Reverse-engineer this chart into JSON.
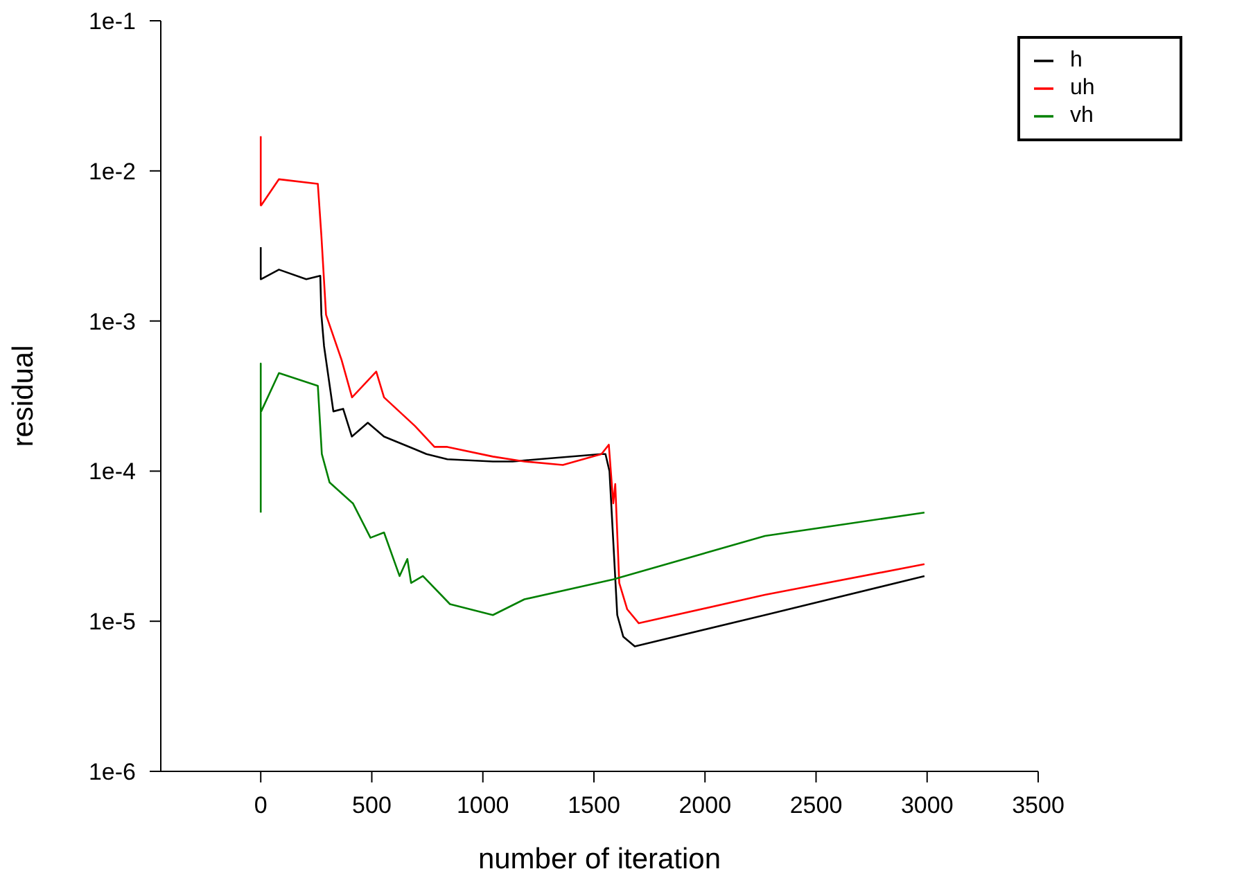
{
  "chart_data": {
    "type": "line",
    "xlabel": "number of iteration",
    "ylabel": "residual",
    "log": "y",
    "xlim": [
      -450,
      3500
    ],
    "xticks": [
      0,
      500,
      1000,
      1500,
      2000,
      2500,
      3000,
      3500
    ],
    "ylim": [
      1e-06,
      0.1
    ],
    "yticks": [
      {
        "value": 1e-06,
        "label": "1e-6"
      },
      {
        "value": 1e-05,
        "label": "1e-5"
      },
      {
        "value": 0.0001,
        "label": "1e-4"
      },
      {
        "value": 0.001,
        "label": "1e-3"
      },
      {
        "value": 0.01,
        "label": "1e-2"
      },
      {
        "value": 0.1,
        "label": "1e-1"
      }
    ],
    "grid": false,
    "legend": "top right",
    "marker": "none",
    "line_style": "solid",
    "series": [
      {
        "name": "h",
        "color": "#000000",
        "x": [
          0,
          0,
          2,
          82,
          205,
          268,
          273,
          285,
          327,
          371,
          410,
          482,
          555,
          694,
          746,
          840,
          1045,
          1134,
          1534,
          1552,
          1570,
          1605,
          1632,
          1684,
          2270,
          2988
        ],
        "values": [
          0.0031,
          0.0019,
          0.0019,
          0.0022,
          0.0019,
          0.002,
          0.0011,
          0.00068,
          0.00025,
          0.00026,
          0.00017,
          0.00021,
          0.00017,
          0.00014,
          0.00013,
          0.00012,
          0.000116,
          0.000116,
          0.00013,
          0.00013,
          0.0001,
          1.1e-05,
          7.9e-06,
          6.8e-06,
          1.1e-05,
          2e-05
        ]
      },
      {
        "name": "uh",
        "color": "#ff0000",
        "x": [
          0,
          0,
          2,
          82,
          257,
          273,
          294,
          364,
          411,
          520,
          555,
          694,
          782,
          840,
          1045,
          1187,
          1360,
          1534,
          1567,
          1587,
          1596,
          1614,
          1650,
          1702,
          2270,
          2988
        ],
        "values": [
          0.017,
          0.0059,
          0.0059,
          0.0088,
          0.0082,
          0.0037,
          0.0011,
          0.00055,
          0.00031,
          0.00046,
          0.00031,
          0.0002,
          0.000145,
          0.000145,
          0.000125,
          0.000116,
          0.00011,
          0.00013,
          0.00015,
          6.1e-05,
          8.2e-05,
          1.8e-05,
          1.2e-05,
          9.7e-06,
          1.5e-05,
          2.4e-05
        ]
      },
      {
        "name": "vh",
        "color": "#008000",
        "x": [
          0,
          0,
          0,
          2,
          82,
          257,
          275,
          310,
          415,
          494,
          555,
          625,
          660,
          677,
          730,
          852,
          1045,
          1187,
          1587,
          2270,
          2988
        ],
        "values": [
          5.3e-05,
          0.00052,
          0.00025,
          0.00025,
          0.00045,
          0.00037,
          0.00013,
          8.4e-05,
          6.1e-05,
          3.6e-05,
          3.9e-05,
          2e-05,
          2.6e-05,
          1.8e-05,
          2e-05,
          1.3e-05,
          1.1e-05,
          1.4e-05,
          1.9e-05,
          3.7e-05,
          5.3e-05
        ]
      }
    ]
  }
}
